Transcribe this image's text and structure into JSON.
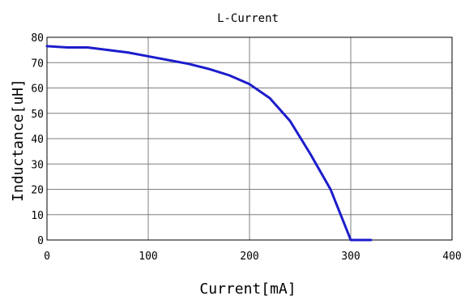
{
  "chart_data": {
    "type": "line",
    "title": "L-Current",
    "xlabel": "Current[mA]",
    "ylabel": "Inductance[uH]",
    "xlim": [
      0,
      400
    ],
    "ylim": [
      0,
      80
    ],
    "xticks": [
      0,
      100,
      200,
      300,
      400
    ],
    "yticks": [
      0,
      10,
      20,
      30,
      40,
      50,
      60,
      70,
      80
    ],
    "grid": true,
    "colors": {
      "line": "#1c1ccc",
      "grid": "#7f7f7f",
      "frame": "#000000"
    },
    "series": [
      {
        "x": [
          0,
          20,
          40,
          60,
          80,
          100,
          120,
          140,
          160,
          180,
          200,
          220,
          240,
          260,
          280,
          300,
          320
        ],
        "y": [
          76.5,
          76,
          76,
          75,
          74,
          72.5,
          71,
          69.5,
          67.5,
          65,
          61.5,
          56,
          47,
          34,
          20,
          0,
          0
        ]
      }
    ]
  }
}
